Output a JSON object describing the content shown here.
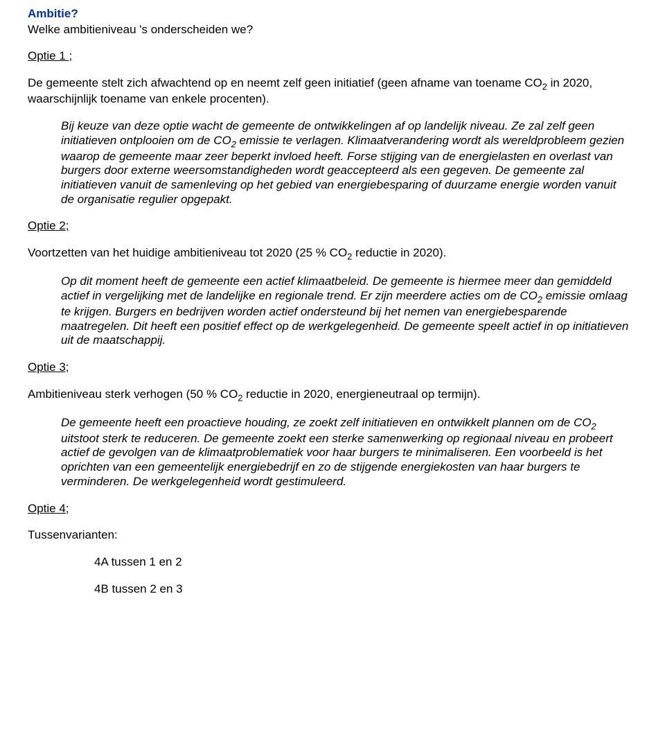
{
  "title": "Ambitie?",
  "subtitle": "Welke ambitieniveau 's onderscheiden we?",
  "colors": {
    "title_color": "#003399",
    "text_color": "#000000",
    "background": "#ffffff"
  },
  "fonts": {
    "family": "Arial",
    "base_size_pt": 13,
    "title_weight": "bold"
  },
  "optie1": {
    "label": "Optie 1 ;",
    "body_pre": "De gemeente stelt zich afwachtend op en neemt zelf geen initiatief (geen afname van toename CO",
    "body_sub": "2",
    "body_post": " in 2020, waarschijnlijk toename van enkele procenten).",
    "italic_html": "Bij keuze van deze optie wacht de gemeente de ontwikkelingen af op landelijk niveau. Ze zal zelf geen initiatieven ontplooien om de CO<sub>2</sub> emissie te verlagen. Klimaatverandering wordt als wereldprobleem gezien waarop de gemeente maar zeer beperkt invloed heeft. Forse stijging van de energielasten en overlast van burgers door externe weersomstandigheden wordt geaccepteerd als een gegeven. De gemeente zal initiatieven vanuit de samenleving op het gebied van energiebesparing of duurzame energie worden vanuit de organisatie regulier opgepakt."
  },
  "optie2": {
    "label": "Optie 2;",
    "body_pre": "Voortzetten van het huidige ambitieniveau tot 2020 (25 % CO",
    "body_sub": "2",
    "body_post": " reductie in 2020).",
    "italic_html": "Op dit moment heeft de gemeente een actief klimaatbeleid. De gemeente is hiermee meer dan gemiddeld actief in vergelijking met de landelijke en regionale trend. Er zijn meerdere acties om de  CO<sub>2</sub> emissie omlaag te krijgen. Burgers en bedrijven worden actief ondersteund bij het nemen van energiebesparende maatregelen. Dit heeft een positief effect op de werkgelegenheid. De gemeente speelt actief in op initiatieven uit de maatschappij."
  },
  "optie3": {
    "label": "Optie 3;",
    "body_pre": "Ambitieniveau sterk verhogen (50 % CO",
    "body_sub": "2",
    "body_post": " reductie in 2020, energieneutraal op termijn).",
    "italic_html": "De gemeente heeft een proactieve houding, ze zoekt zelf initiatieven en ontwikkelt plannen om de  CO<sub>2</sub> uitstoot sterk te reduceren. De gemeente zoekt een sterke samenwerking op regionaal niveau en probeert actief de gevolgen van de klimaatproblematiek voor haar burgers te minimaliseren. Een voorbeeld is het oprichten van een gemeentelijk energiebedrijf en zo de stijgende energiekosten van haar burgers te verminderen. De werkgelegenheid wordt gestimuleerd."
  },
  "optie4": {
    "label": " Optie 4;",
    "body": "Tussenvarianten:",
    "sub_a": "4A tussen 1 en 2",
    "sub_b": "4B tussen 2 en 3"
  }
}
